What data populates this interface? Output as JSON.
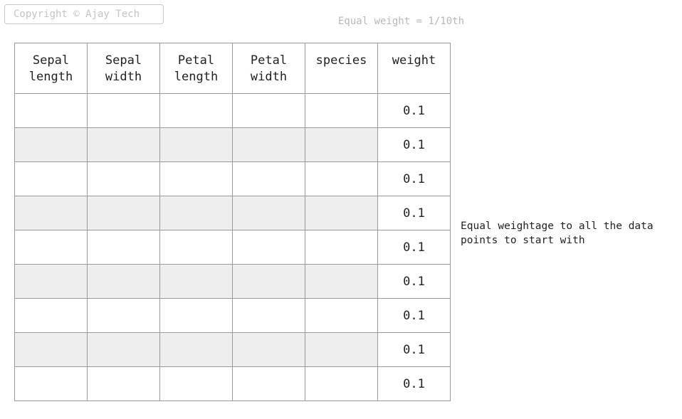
{
  "copyright": "Copyright © Ajay Tech",
  "top_note": "Equal weight = 1/10th",
  "table": {
    "headers": [
      [
        "Sepal",
        "length"
      ],
      [
        "Sepal",
        "width"
      ],
      [
        "Petal",
        "length"
      ],
      [
        "Petal",
        "width"
      ],
      [
        "species"
      ],
      [
        "weight"
      ]
    ],
    "weights": [
      "0.1",
      "0.1",
      "0.1",
      "0.1",
      "0.1",
      "0.1",
      "0.1",
      "0.1",
      "0.1"
    ],
    "shaded_fill": "#eeeeee"
  },
  "side_note": "Equal weightage to all the data points to start with"
}
